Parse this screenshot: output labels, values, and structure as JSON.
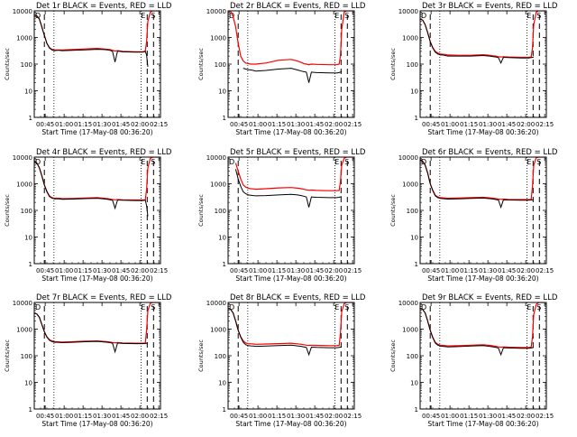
{
  "figure": {
    "xlabel": "Start Time (17-May-08 00:36:20)",
    "ylabel": "Counts/sec",
    "x_tick_labels": [
      "00:45",
      "01:00",
      "01:15",
      "01:30",
      "01:45",
      "02:00",
      "02:15"
    ],
    "y_tick_labels": [
      "1",
      "10",
      "100",
      "1000",
      "10000"
    ],
    "legend_colors": {
      "events": "#000000",
      "lld": "#ff0000"
    },
    "marker_labels": {
      "start": "D",
      "end_left": "E",
      "end_right": "S"
    }
  },
  "chart_data": [
    {
      "type": "line",
      "title": "Det 1r BLACK = Events, RED = LLD",
      "x_minutes": [
        0,
        2,
        4,
        6,
        8,
        10,
        12,
        14,
        16,
        18,
        20,
        22,
        30,
        40,
        50,
        55,
        58,
        60,
        62,
        64,
        66,
        70,
        80,
        86,
        88,
        89,
        90,
        92,
        94,
        96,
        97,
        98
      ],
      "x_range_minutes": [
        0,
        100
      ],
      "y_range": [
        1,
        10000
      ],
      "y_scale": "log",
      "dashed_markers_minutes": [
        8,
        89.5,
        94.5
      ],
      "dotted_markers_minutes": [
        15.6,
        84.6
      ],
      "series": [
        {
          "name": "Events",
          "values": [
            7000,
            6500,
            5000,
            2500,
            1200,
            600,
            400,
            340,
            320,
            330,
            330,
            320,
            330,
            340,
            360,
            350,
            340,
            330,
            300,
            120,
            310,
            290,
            280,
            280,
            300,
            220,
            80,
            null,
            null,
            null,
            null,
            null
          ]
        },
        {
          "name": "LLD",
          "values": [
            7000,
            6500,
            5000,
            2500,
            1200,
            600,
            420,
            360,
            340,
            340,
            340,
            340,
            350,
            370,
            390,
            370,
            360,
            350,
            330,
            310,
            320,
            300,
            290,
            290,
            310,
            700,
            4000,
            9000,
            10000,
            10000,
            10000,
            10000
          ]
        }
      ]
    },
    {
      "type": "line",
      "title": "Det 2r BLACK = Events, RED = LLD",
      "x_minutes": [
        0,
        2,
        4,
        6,
        8,
        10,
        12,
        14,
        16,
        18,
        20,
        22,
        30,
        40,
        50,
        55,
        58,
        60,
        62,
        64,
        66,
        70,
        80,
        86,
        88,
        89,
        90,
        92,
        94,
        96,
        97,
        98
      ],
      "x_range_minutes": [
        0,
        100
      ],
      "y_range": [
        1,
        10000
      ],
      "y_scale": "log",
      "dashed_markers_minutes": [
        8,
        89.5,
        94.5
      ],
      "dotted_markers_minutes": [
        15.6,
        84.6
      ],
      "series": [
        {
          "name": "Events",
          "values": [
            null,
            null,
            null,
            null,
            null,
            null,
            70,
            65,
            62,
            60,
            58,
            55,
            58,
            65,
            70,
            60,
            55,
            52,
            50,
            20,
            50,
            48,
            47,
            46,
            48,
            50,
            52,
            null,
            null,
            null,
            null,
            null
          ]
        },
        {
          "name": "LLD",
          "values": [
            10000,
            9500,
            6000,
            2500,
            600,
            200,
            130,
            110,
            105,
            100,
            100,
            100,
            110,
            140,
            150,
            130,
            115,
            105,
            100,
            95,
            100,
            98,
            95,
            95,
            100,
            200,
            2000,
            9000,
            10000,
            10000,
            10000,
            10000
          ]
        }
      ]
    },
    {
      "type": "line",
      "title": "Det 3r BLACK = Events, RED = LLD",
      "x_minutes": [
        0,
        2,
        4,
        6,
        8,
        10,
        12,
        14,
        16,
        18,
        20,
        22,
        30,
        40,
        50,
        55,
        58,
        60,
        62,
        64,
        66,
        70,
        80,
        86,
        88,
        89,
        90,
        92,
        94,
        96,
        97,
        98
      ],
      "x_range_minutes": [
        0,
        100
      ],
      "y_range": [
        1,
        10000
      ],
      "y_scale": "log",
      "dashed_markers_minutes": [
        8,
        89.5,
        94.5
      ],
      "dotted_markers_minutes": [
        15.6,
        84.6
      ],
      "series": [
        {
          "name": "Events",
          "values": [
            5000,
            4500,
            3000,
            1500,
            700,
            400,
            280,
            240,
            220,
            220,
            210,
            200,
            200,
            200,
            210,
            200,
            190,
            185,
            175,
            110,
            180,
            175,
            170,
            170,
            175,
            180,
            185,
            null,
            null,
            null,
            null,
            null
          ]
        },
        {
          "name": "LLD",
          "values": [
            5000,
            4500,
            3000,
            1500,
            700,
            420,
            300,
            260,
            240,
            235,
            230,
            220,
            215,
            215,
            225,
            215,
            205,
            200,
            190,
            185,
            190,
            185,
            180,
            180,
            185,
            400,
            3000,
            9000,
            10000,
            10000,
            10000,
            10000
          ]
        }
      ]
    },
    {
      "type": "line",
      "title": "Det 4r BLACK = Events, RED = LLD",
      "x_minutes": [
        0,
        2,
        4,
        6,
        8,
        10,
        12,
        14,
        16,
        18,
        20,
        22,
        30,
        40,
        50,
        55,
        58,
        60,
        62,
        64,
        66,
        70,
        80,
        86,
        88,
        89,
        90,
        92,
        94,
        96,
        97,
        98
      ],
      "x_range_minutes": [
        0,
        100
      ],
      "y_range": [
        1,
        10000
      ],
      "y_scale": "log",
      "dashed_markers_minutes": [
        8,
        89.5,
        94.5
      ],
      "dotted_markers_minutes": [
        15.6,
        84.6
      ],
      "series": [
        {
          "name": "Events",
          "values": [
            7000,
            6000,
            4000,
            2000,
            900,
            500,
            330,
            290,
            270,
            270,
            270,
            260,
            265,
            275,
            285,
            270,
            260,
            250,
            240,
            120,
            245,
            240,
            235,
            235,
            240,
            150,
            60,
            null,
            null,
            null,
            null,
            null
          ]
        },
        {
          "name": "LLD",
          "values": [
            7000,
            6000,
            4000,
            2000,
            900,
            520,
            350,
            300,
            285,
            285,
            285,
            275,
            280,
            290,
            300,
            285,
            275,
            265,
            255,
            250,
            255,
            250,
            245,
            245,
            250,
            600,
            4000,
            9000,
            10000,
            10000,
            10000,
            10000
          ]
        }
      ]
    },
    {
      "type": "line",
      "title": "Det 5r BLACK = Events, RED = LLD",
      "x_minutes": [
        0,
        2,
        4,
        6,
        8,
        10,
        12,
        14,
        16,
        18,
        20,
        22,
        30,
        40,
        50,
        55,
        58,
        60,
        62,
        64,
        66,
        70,
        80,
        86,
        88,
        89,
        90,
        92,
        94,
        96,
        97,
        98
      ],
      "x_range_minutes": [
        0,
        100
      ],
      "y_range": [
        1,
        10000
      ],
      "y_scale": "log",
      "dashed_markers_minutes": [
        8,
        89.5,
        94.5
      ],
      "dotted_markers_minutes": [
        15.6,
        84.6
      ],
      "series": [
        {
          "name": "Events",
          "values": [
            null,
            null,
            null,
            3500,
            1500,
            800,
            500,
            420,
            380,
            370,
            360,
            350,
            360,
            380,
            400,
            380,
            360,
            340,
            320,
            130,
            320,
            310,
            300,
            300,
            310,
            320,
            330,
            null,
            null,
            null,
            null,
            null
          ]
        },
        {
          "name": "LLD",
          "values": [
            null,
            null,
            null,
            6000,
            3000,
            1500,
            900,
            750,
            680,
            650,
            640,
            620,
            650,
            700,
            720,
            680,
            650,
            620,
            590,
            570,
            580,
            560,
            550,
            550,
            560,
            1200,
            5000,
            9000,
            10000,
            10000,
            10000,
            10000
          ]
        }
      ]
    },
    {
      "type": "line",
      "title": "Det 6r BLACK = Events, RED = LLD",
      "x_minutes": [
        0,
        2,
        4,
        6,
        8,
        10,
        12,
        14,
        16,
        18,
        20,
        22,
        30,
        40,
        50,
        55,
        58,
        60,
        62,
        64,
        66,
        70,
        80,
        86,
        88,
        89,
        90,
        92,
        94,
        96,
        97,
        98
      ],
      "x_range_minutes": [
        0,
        100
      ],
      "y_range": [
        1,
        10000
      ],
      "y_scale": "log",
      "dashed_markers_minutes": [
        8,
        89.5,
        94.5
      ],
      "dotted_markers_minutes": [
        15.6,
        84.6
      ],
      "series": [
        {
          "name": "Events",
          "values": [
            8000,
            7000,
            5000,
            2500,
            1000,
            550,
            350,
            300,
            280,
            275,
            270,
            265,
            270,
            280,
            290,
            275,
            265,
            255,
            245,
            130,
            250,
            245,
            240,
            240,
            245,
            250,
            255,
            null,
            null,
            null,
            null,
            null
          ]
        },
        {
          "name": "LLD",
          "values": [
            8000,
            7000,
            5000,
            2500,
            1000,
            570,
            370,
            320,
            300,
            295,
            290,
            285,
            290,
            300,
            310,
            295,
            285,
            275,
            265,
            260,
            265,
            260,
            255,
            255,
            260,
            800,
            5000,
            9500,
            10000,
            10000,
            10000,
            10000
          ]
        }
      ]
    },
    {
      "type": "line",
      "title": "Det 7r BLACK = Events, RED = LLD",
      "x_minutes": [
        0,
        2,
        4,
        6,
        8,
        10,
        12,
        14,
        16,
        18,
        20,
        22,
        30,
        40,
        50,
        55,
        58,
        60,
        62,
        64,
        66,
        70,
        80,
        86,
        88,
        89,
        90,
        92,
        94,
        96,
        97,
        98
      ],
      "x_range_minutes": [
        0,
        100
      ],
      "y_range": [
        1,
        10000
      ],
      "y_scale": "log",
      "dashed_markers_minutes": [
        8,
        89.5,
        94.5
      ],
      "dotted_markers_minutes": [
        15.6,
        84.6
      ],
      "series": [
        {
          "name": "Events",
          "values": [
            4000,
            3700,
            2800,
            1500,
            800,
            500,
            380,
            340,
            320,
            320,
            315,
            310,
            320,
            335,
            345,
            330,
            320,
            310,
            295,
            140,
            300,
            290,
            285,
            285,
            290,
            295,
            300,
            null,
            null,
            null,
            null,
            null
          ]
        },
        {
          "name": "LLD",
          "values": [
            4000,
            3700,
            2800,
            1500,
            800,
            520,
            400,
            360,
            340,
            335,
            330,
            325,
            335,
            350,
            360,
            345,
            335,
            325,
            310,
            305,
            310,
            300,
            295,
            295,
            300,
            900,
            5000,
            9500,
            10000,
            10000,
            10000,
            10000
          ]
        }
      ]
    },
    {
      "type": "line",
      "title": "Det 8r BLACK = Events, RED = LLD",
      "x_minutes": [
        0,
        2,
        4,
        6,
        8,
        10,
        12,
        14,
        16,
        18,
        20,
        22,
        30,
        40,
        50,
        55,
        58,
        60,
        62,
        64,
        66,
        70,
        80,
        86,
        88,
        89,
        90,
        92,
        94,
        96,
        97,
        98
      ],
      "x_range_minutes": [
        0,
        100
      ],
      "y_range": [
        1,
        10000
      ],
      "y_scale": "log",
      "dashed_markers_minutes": [
        8,
        89.5,
        94.5
      ],
      "dotted_markers_minutes": [
        15.6,
        84.6
      ],
      "series": [
        {
          "name": "Events",
          "values": [
            6000,
            5500,
            4000,
            2000,
            900,
            500,
            320,
            260,
            240,
            235,
            230,
            225,
            230,
            240,
            250,
            235,
            225,
            215,
            205,
            110,
            210,
            205,
            200,
            200,
            205,
            210,
            215,
            null,
            null,
            null,
            null,
            null
          ]
        },
        {
          "name": "LLD",
          "values": [
            6000,
            5500,
            4000,
            2000,
            900,
            520,
            360,
            300,
            285,
            280,
            275,
            270,
            275,
            285,
            295,
            280,
            270,
            260,
            250,
            245,
            250,
            245,
            240,
            240,
            245,
            700,
            4500,
            9000,
            10000,
            10000,
            10000,
            10000
          ]
        }
      ]
    },
    {
      "type": "line",
      "title": "Det 9r BLACK = Events, RED = LLD",
      "x_minutes": [
        0,
        2,
        4,
        6,
        8,
        10,
        12,
        14,
        16,
        18,
        20,
        22,
        30,
        40,
        50,
        55,
        58,
        60,
        62,
        64,
        66,
        70,
        80,
        86,
        88,
        89,
        90,
        92,
        94,
        96,
        97,
        98
      ],
      "x_range_minutes": [
        0,
        100
      ],
      "y_range": [
        1,
        10000
      ],
      "y_scale": "log",
      "dashed_markers_minutes": [
        8,
        89.5,
        94.5
      ],
      "dotted_markers_minutes": [
        15.6,
        84.6
      ],
      "series": [
        {
          "name": "Events",
          "values": [
            6000,
            5500,
            4000,
            2000,
            900,
            480,
            300,
            250,
            230,
            225,
            220,
            215,
            220,
            230,
            240,
            225,
            215,
            205,
            195,
            110,
            200,
            195,
            190,
            190,
            195,
            200,
            205,
            null,
            null,
            null,
            null,
            null
          ]
        },
        {
          "name": "LLD",
          "values": [
            6000,
            5500,
            4000,
            2000,
            900,
            500,
            320,
            270,
            250,
            245,
            240,
            235,
            240,
            250,
            260,
            245,
            235,
            225,
            215,
            210,
            215,
            210,
            205,
            205,
            210,
            500,
            3500,
            8500,
            10000,
            10000,
            10000,
            10000
          ]
        }
      ]
    }
  ]
}
